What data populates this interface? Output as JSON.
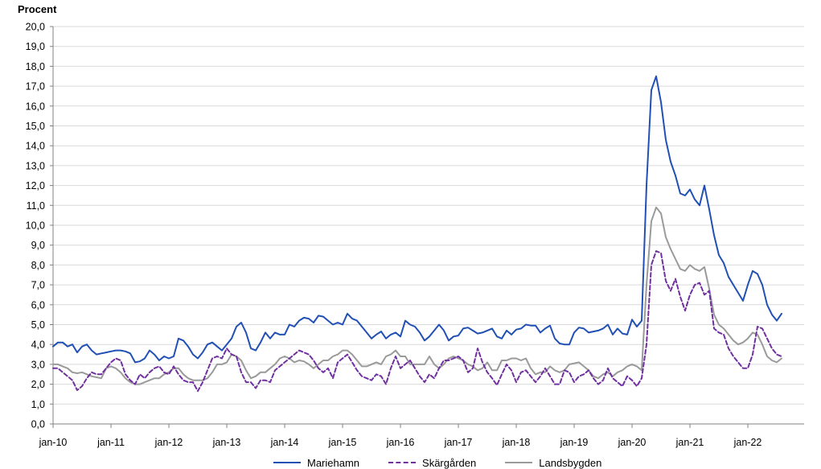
{
  "chart_data": {
    "type": "line",
    "title": "",
    "ylabel": "Procent",
    "xlabel": "",
    "ylim": [
      0,
      20
    ],
    "ytick_step": 1,
    "ytick_labels": [
      "0,0",
      "1,0",
      "2,0",
      "3,0",
      "4,0",
      "5,0",
      "6,0",
      "7,0",
      "8,0",
      "9,0",
      "10,0",
      "11,0",
      "12,0",
      "13,0",
      "14,0",
      "15,0",
      "16,0",
      "17,0",
      "18,0",
      "19,0",
      "20,0"
    ],
    "xtick_labels": [
      "jan-10",
      "jan-11",
      "jan-12",
      "jan-13",
      "jan-14",
      "jan-15",
      "jan-16",
      "jan-17",
      "jan-18",
      "jan-19",
      "jan-20",
      "jan-21",
      "jan-22"
    ],
    "x_start": "jan-10",
    "grid": "horizontal",
    "legend_position": "bottom",
    "series": [
      {
        "name": "Mariehamn",
        "color": "#2150b4",
        "dash": "solid",
        "values": [
          3.9,
          4.1,
          4.1,
          3.9,
          4.0,
          3.6,
          3.9,
          4.0,
          3.7,
          3.5,
          3.55,
          3.6,
          3.65,
          3.7,
          3.7,
          3.65,
          3.55,
          3.1,
          3.15,
          3.3,
          3.7,
          3.5,
          3.2,
          3.4,
          3.3,
          3.4,
          4.3,
          4.2,
          3.9,
          3.5,
          3.3,
          3.6,
          4.0,
          4.1,
          3.9,
          3.7,
          4.0,
          4.3,
          4.9,
          5.1,
          4.6,
          3.8,
          3.7,
          4.1,
          4.6,
          4.3,
          4.6,
          4.5,
          4.5,
          5.0,
          4.9,
          5.2,
          5.35,
          5.3,
          5.1,
          5.45,
          5.4,
          5.2,
          5.0,
          5.1,
          5.0,
          5.55,
          5.3,
          5.2,
          4.9,
          4.6,
          4.3,
          4.5,
          4.65,
          4.3,
          4.5,
          4.6,
          4.4,
          5.2,
          5.0,
          4.9,
          4.6,
          4.2,
          4.4,
          4.7,
          5.0,
          4.7,
          4.2,
          4.4,
          4.45,
          4.8,
          4.85,
          4.7,
          4.55,
          4.6,
          4.7,
          4.8,
          4.4,
          4.3,
          4.7,
          4.5,
          4.75,
          4.8,
          5.0,
          4.95,
          4.95,
          4.6,
          4.8,
          4.95,
          4.3,
          4.05,
          4.0,
          4.0,
          4.6,
          4.85,
          4.8,
          4.6,
          4.65,
          4.7,
          4.8,
          5.0,
          4.5,
          4.8,
          4.55,
          4.5,
          5.25,
          4.9,
          5.2,
          12.0,
          16.8,
          17.5,
          16.2,
          14.3,
          13.2,
          12.5,
          11.6,
          11.5,
          11.8,
          11.3,
          11.0,
          12.0,
          10.8,
          9.5,
          8.5,
          8.1,
          7.4,
          7.0,
          6.6,
          6.2,
          7.0,
          7.7,
          7.55,
          7.0,
          6.0,
          5.5,
          5.2,
          5.55
        ]
      },
      {
        "name": "Skärgården",
        "color": "#7030a0",
        "dash": "dashed",
        "values": [
          2.8,
          2.8,
          2.6,
          2.4,
          2.2,
          1.7,
          1.9,
          2.3,
          2.6,
          2.5,
          2.5,
          2.8,
          3.1,
          3.3,
          3.2,
          2.5,
          2.2,
          2.0,
          2.5,
          2.3,
          2.6,
          2.8,
          2.9,
          2.6,
          2.5,
          2.9,
          2.5,
          2.2,
          2.1,
          2.1,
          1.65,
          2.1,
          2.7,
          3.3,
          3.4,
          3.3,
          3.8,
          3.5,
          3.4,
          2.6,
          2.1,
          2.1,
          1.8,
          2.2,
          2.2,
          2.1,
          2.7,
          2.9,
          3.1,
          3.3,
          3.5,
          3.7,
          3.6,
          3.5,
          3.2,
          2.8,
          2.6,
          2.8,
          2.3,
          3.1,
          3.3,
          3.5,
          3.1,
          2.7,
          2.4,
          2.3,
          2.2,
          2.5,
          2.4,
          2.0,
          2.8,
          3.4,
          2.8,
          3.0,
          3.2,
          2.8,
          2.4,
          2.1,
          2.5,
          2.3,
          2.8,
          3.2,
          3.2,
          3.3,
          3.4,
          3.2,
          2.6,
          2.8,
          3.8,
          3.1,
          2.6,
          2.3,
          1.95,
          2.5,
          3.0,
          2.7,
          2.1,
          2.6,
          2.7,
          2.4,
          2.1,
          2.4,
          2.8,
          2.4,
          2.0,
          2.0,
          2.7,
          2.6,
          2.1,
          2.4,
          2.5,
          2.7,
          2.3,
          2.0,
          2.2,
          2.8,
          2.3,
          2.1,
          1.9,
          2.4,
          2.2,
          1.9,
          2.3,
          4.0,
          8.0,
          8.7,
          8.6,
          7.2,
          6.7,
          7.3,
          6.4,
          5.7,
          6.5,
          7.0,
          7.1,
          6.5,
          6.7,
          4.8,
          4.6,
          4.5,
          3.8,
          3.4,
          3.1,
          2.8,
          2.8,
          3.5,
          4.9,
          4.8,
          4.3,
          3.8,
          3.5,
          3.4
        ]
      },
      {
        "name": "Landsbygden",
        "color": "#9a9a9a",
        "dash": "solid",
        "values": [
          3.0,
          3.0,
          2.9,
          2.8,
          2.6,
          2.55,
          2.6,
          2.5,
          2.4,
          2.35,
          2.3,
          2.8,
          2.9,
          2.8,
          2.6,
          2.3,
          2.1,
          2.0,
          2.0,
          2.1,
          2.2,
          2.3,
          2.3,
          2.5,
          2.6,
          2.8,
          2.8,
          2.5,
          2.3,
          2.2,
          2.2,
          2.2,
          2.3,
          2.6,
          3.0,
          3.0,
          3.1,
          3.5,
          3.4,
          3.2,
          2.7,
          2.3,
          2.4,
          2.6,
          2.6,
          2.8,
          3.0,
          3.3,
          3.4,
          3.3,
          3.1,
          3.2,
          3.15,
          3.0,
          2.8,
          3.0,
          3.2,
          3.2,
          3.4,
          3.5,
          3.7,
          3.7,
          3.5,
          3.2,
          2.9,
          2.9,
          3.0,
          3.1,
          3.0,
          3.4,
          3.5,
          3.7,
          3.4,
          3.4,
          3.0,
          3.0,
          3.0,
          3.0,
          3.4,
          3.0,
          2.8,
          3.0,
          3.3,
          3.4,
          3.3,
          3.2,
          3.0,
          2.9,
          2.7,
          2.8,
          3.1,
          2.7,
          2.7,
          3.2,
          3.2,
          3.3,
          3.3,
          3.2,
          3.3,
          2.8,
          2.5,
          2.6,
          2.6,
          2.9,
          2.7,
          2.6,
          2.7,
          3.0,
          3.05,
          3.1,
          2.9,
          2.7,
          2.4,
          2.3,
          2.5,
          2.6,
          2.4,
          2.6,
          2.7,
          2.9,
          3.0,
          2.9,
          2.7,
          7.0,
          10.2,
          10.9,
          10.6,
          9.4,
          8.8,
          8.3,
          7.8,
          7.7,
          8.0,
          7.8,
          7.7,
          7.9,
          6.8,
          5.5,
          5.0,
          4.8,
          4.5,
          4.2,
          4.0,
          4.1,
          4.3,
          4.6,
          4.5,
          4.0,
          3.4,
          3.2,
          3.1,
          3.3
        ]
      }
    ]
  }
}
